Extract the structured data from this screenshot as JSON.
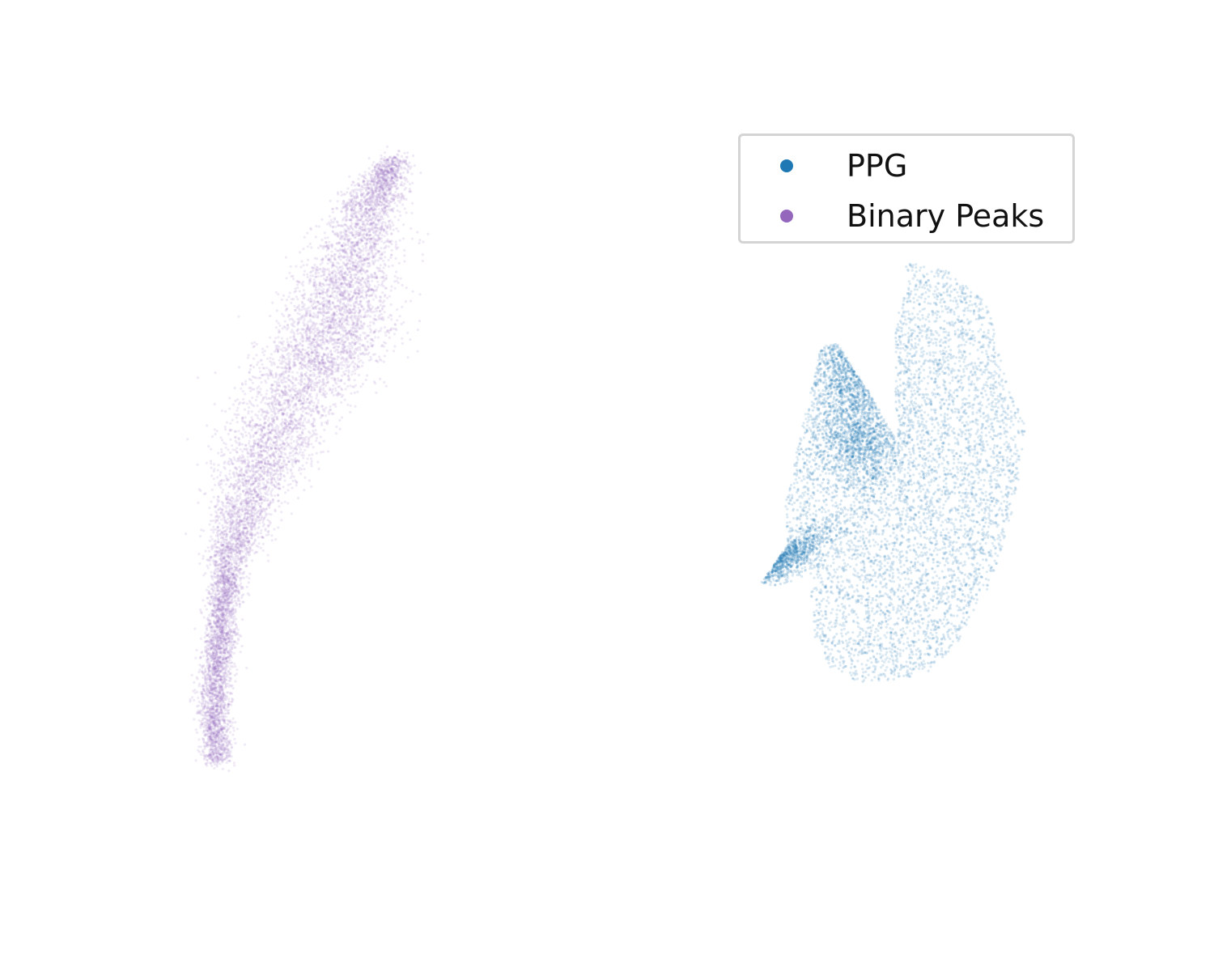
{
  "chart_data": {
    "type": "scatter",
    "title": "",
    "xlabel": "",
    "ylabel": "",
    "axes_visible": false,
    "grid": false,
    "legend_placement": "top-right",
    "series": [
      {
        "name": "PPG",
        "color": "#1f77b4",
        "marker_alpha": 0.1,
        "approx_points": 9000,
        "x_range": [
          1.0,
          5.0
        ],
        "y_range": [
          -4.3,
          2.2
        ],
        "outline": [
          [
            3.2,
            2.2
          ],
          [
            3.8,
            2.1
          ],
          [
            4.45,
            1.55
          ],
          [
            4.7,
            0.4
          ],
          [
            5.0,
            -0.3
          ],
          [
            4.85,
            -1.5
          ],
          [
            4.5,
            -2.7
          ],
          [
            4.0,
            -3.65
          ],
          [
            3.5,
            -4.15
          ],
          [
            2.6,
            -4.3
          ],
          [
            2.1,
            -4.05
          ],
          [
            1.85,
            -3.6
          ],
          [
            1.78,
            -2.6
          ],
          [
            1.3,
            -2.8
          ],
          [
            1.05,
            -2.75
          ],
          [
            1.45,
            -2.15
          ],
          [
            1.4,
            -1.5
          ],
          [
            1.55,
            -0.85
          ],
          [
            1.95,
            0.9
          ],
          [
            2.2,
            0.95
          ],
          [
            2.7,
            0.15
          ],
          [
            3.1,
            -0.6
          ],
          [
            3.05,
            0.3
          ],
          [
            3.05,
            1.2
          ],
          [
            3.25,
            1.95
          ]
        ],
        "dense_regions": [
          [
            2.4,
            0.55
          ],
          [
            2.55,
            -0.55
          ],
          [
            1.35,
            -2.4
          ]
        ]
      },
      {
        "name": "Binary Peaks",
        "color": "#9467bd",
        "marker_alpha": 0.1,
        "approx_points": 9000,
        "x_range": [
          -7.3,
          -4.2
        ],
        "y_range": [
          -5.5,
          3.8
        ],
        "spine": [
          [
            -4.4,
            3.8
          ],
          [
            -4.8,
            3.0
          ],
          [
            -5.1,
            2.0
          ],
          [
            -5.3,
            1.2
          ],
          [
            -5.7,
            0.5
          ],
          [
            -6.2,
            -0.5
          ],
          [
            -6.6,
            -1.5
          ],
          [
            -6.9,
            -2.5
          ],
          [
            -7.0,
            -3.5
          ],
          [
            -7.1,
            -4.5
          ],
          [
            -7.05,
            -5.5
          ]
        ],
        "dense_regions": [
          [
            -4.6,
            3.0
          ],
          [
            -5.3,
            1.2
          ],
          [
            -6.4,
            -1.5
          ],
          [
            -7.0,
            -4.8
          ]
        ]
      }
    ]
  }
}
